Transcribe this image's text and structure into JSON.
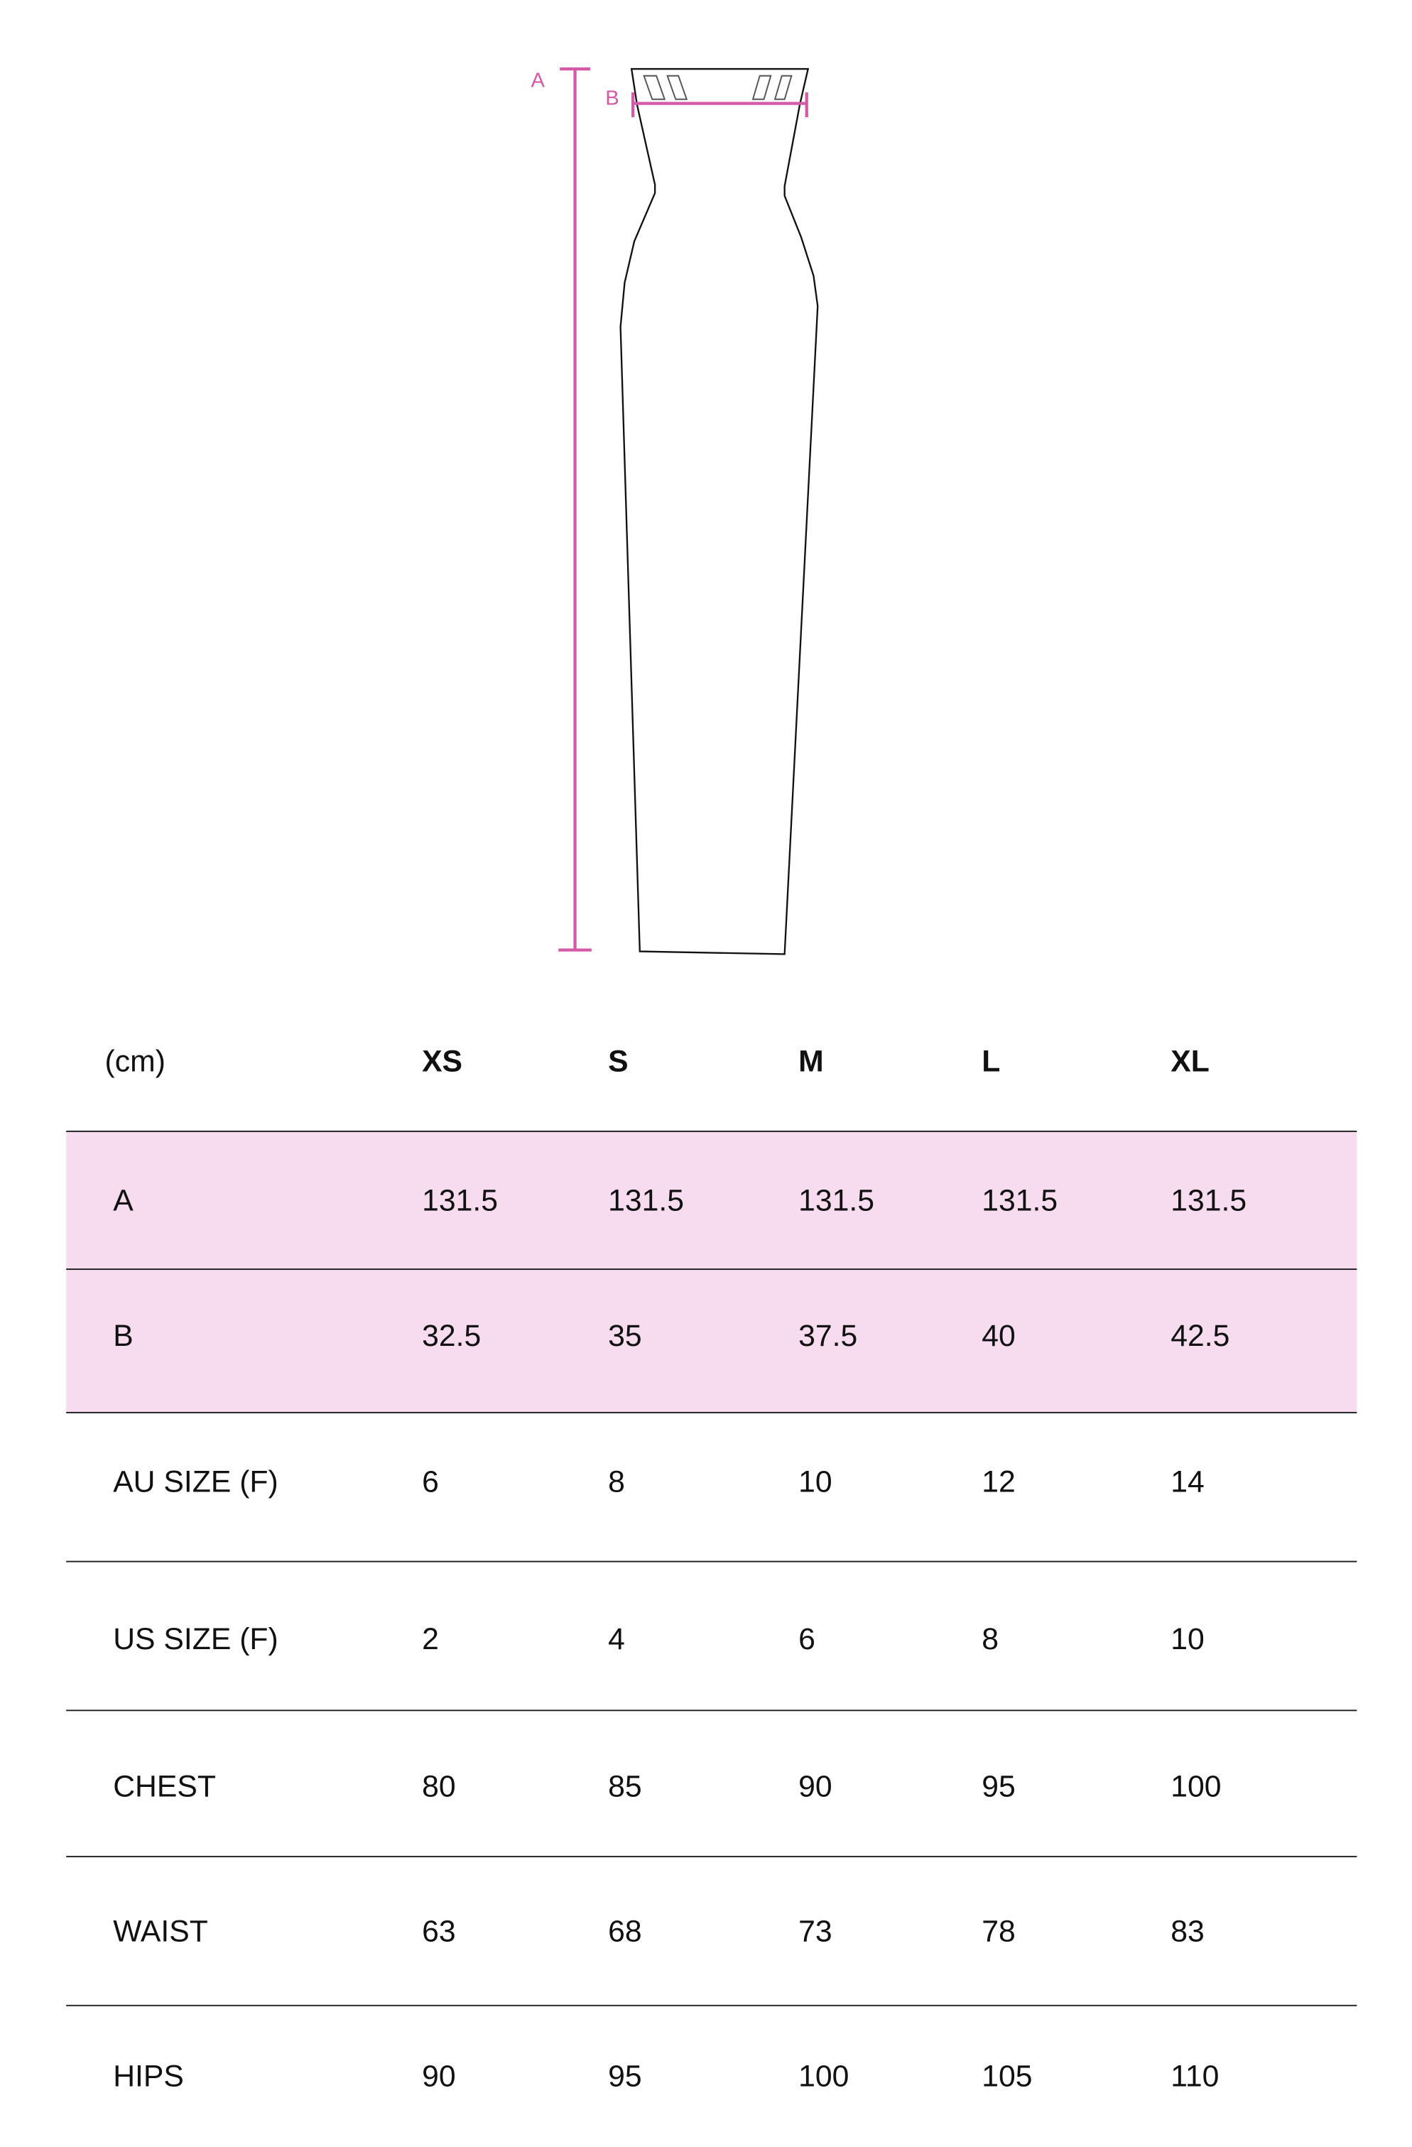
{
  "diagram": {
    "labels": {
      "length": "A",
      "width": "B"
    },
    "accent_color": "#d45aa8"
  },
  "table": {
    "unit": "(cm)",
    "sizes": [
      "XS",
      "S",
      "M",
      "L",
      "XL"
    ],
    "rows": [
      {
        "label": "A",
        "values": [
          "131.5",
          "131.5",
          "131.5",
          "131.5",
          "131.5"
        ],
        "highlight": true
      },
      {
        "label": "B",
        "values": [
          "32.5",
          "35",
          "37.5",
          "40",
          "42.5"
        ],
        "highlight": true
      },
      {
        "label": "AU SIZE (F)",
        "values": [
          "6",
          "8",
          "10",
          "12",
          "14"
        ],
        "highlight": false
      },
      {
        "label": "US SIZE (F)",
        "values": [
          "2",
          "4",
          "6",
          "8",
          "10"
        ],
        "highlight": false
      },
      {
        "label": "CHEST",
        "values": [
          "80",
          "85",
          "90",
          "95",
          "100"
        ],
        "highlight": false
      },
      {
        "label": "WAIST",
        "values": [
          "63",
          "68",
          "73",
          "78",
          "83"
        ],
        "highlight": false
      },
      {
        "label": "HIPS",
        "values": [
          "90",
          "95",
          "100",
          "105",
          "110"
        ],
        "highlight": false
      }
    ],
    "highlight_color": "#f6dcee"
  }
}
